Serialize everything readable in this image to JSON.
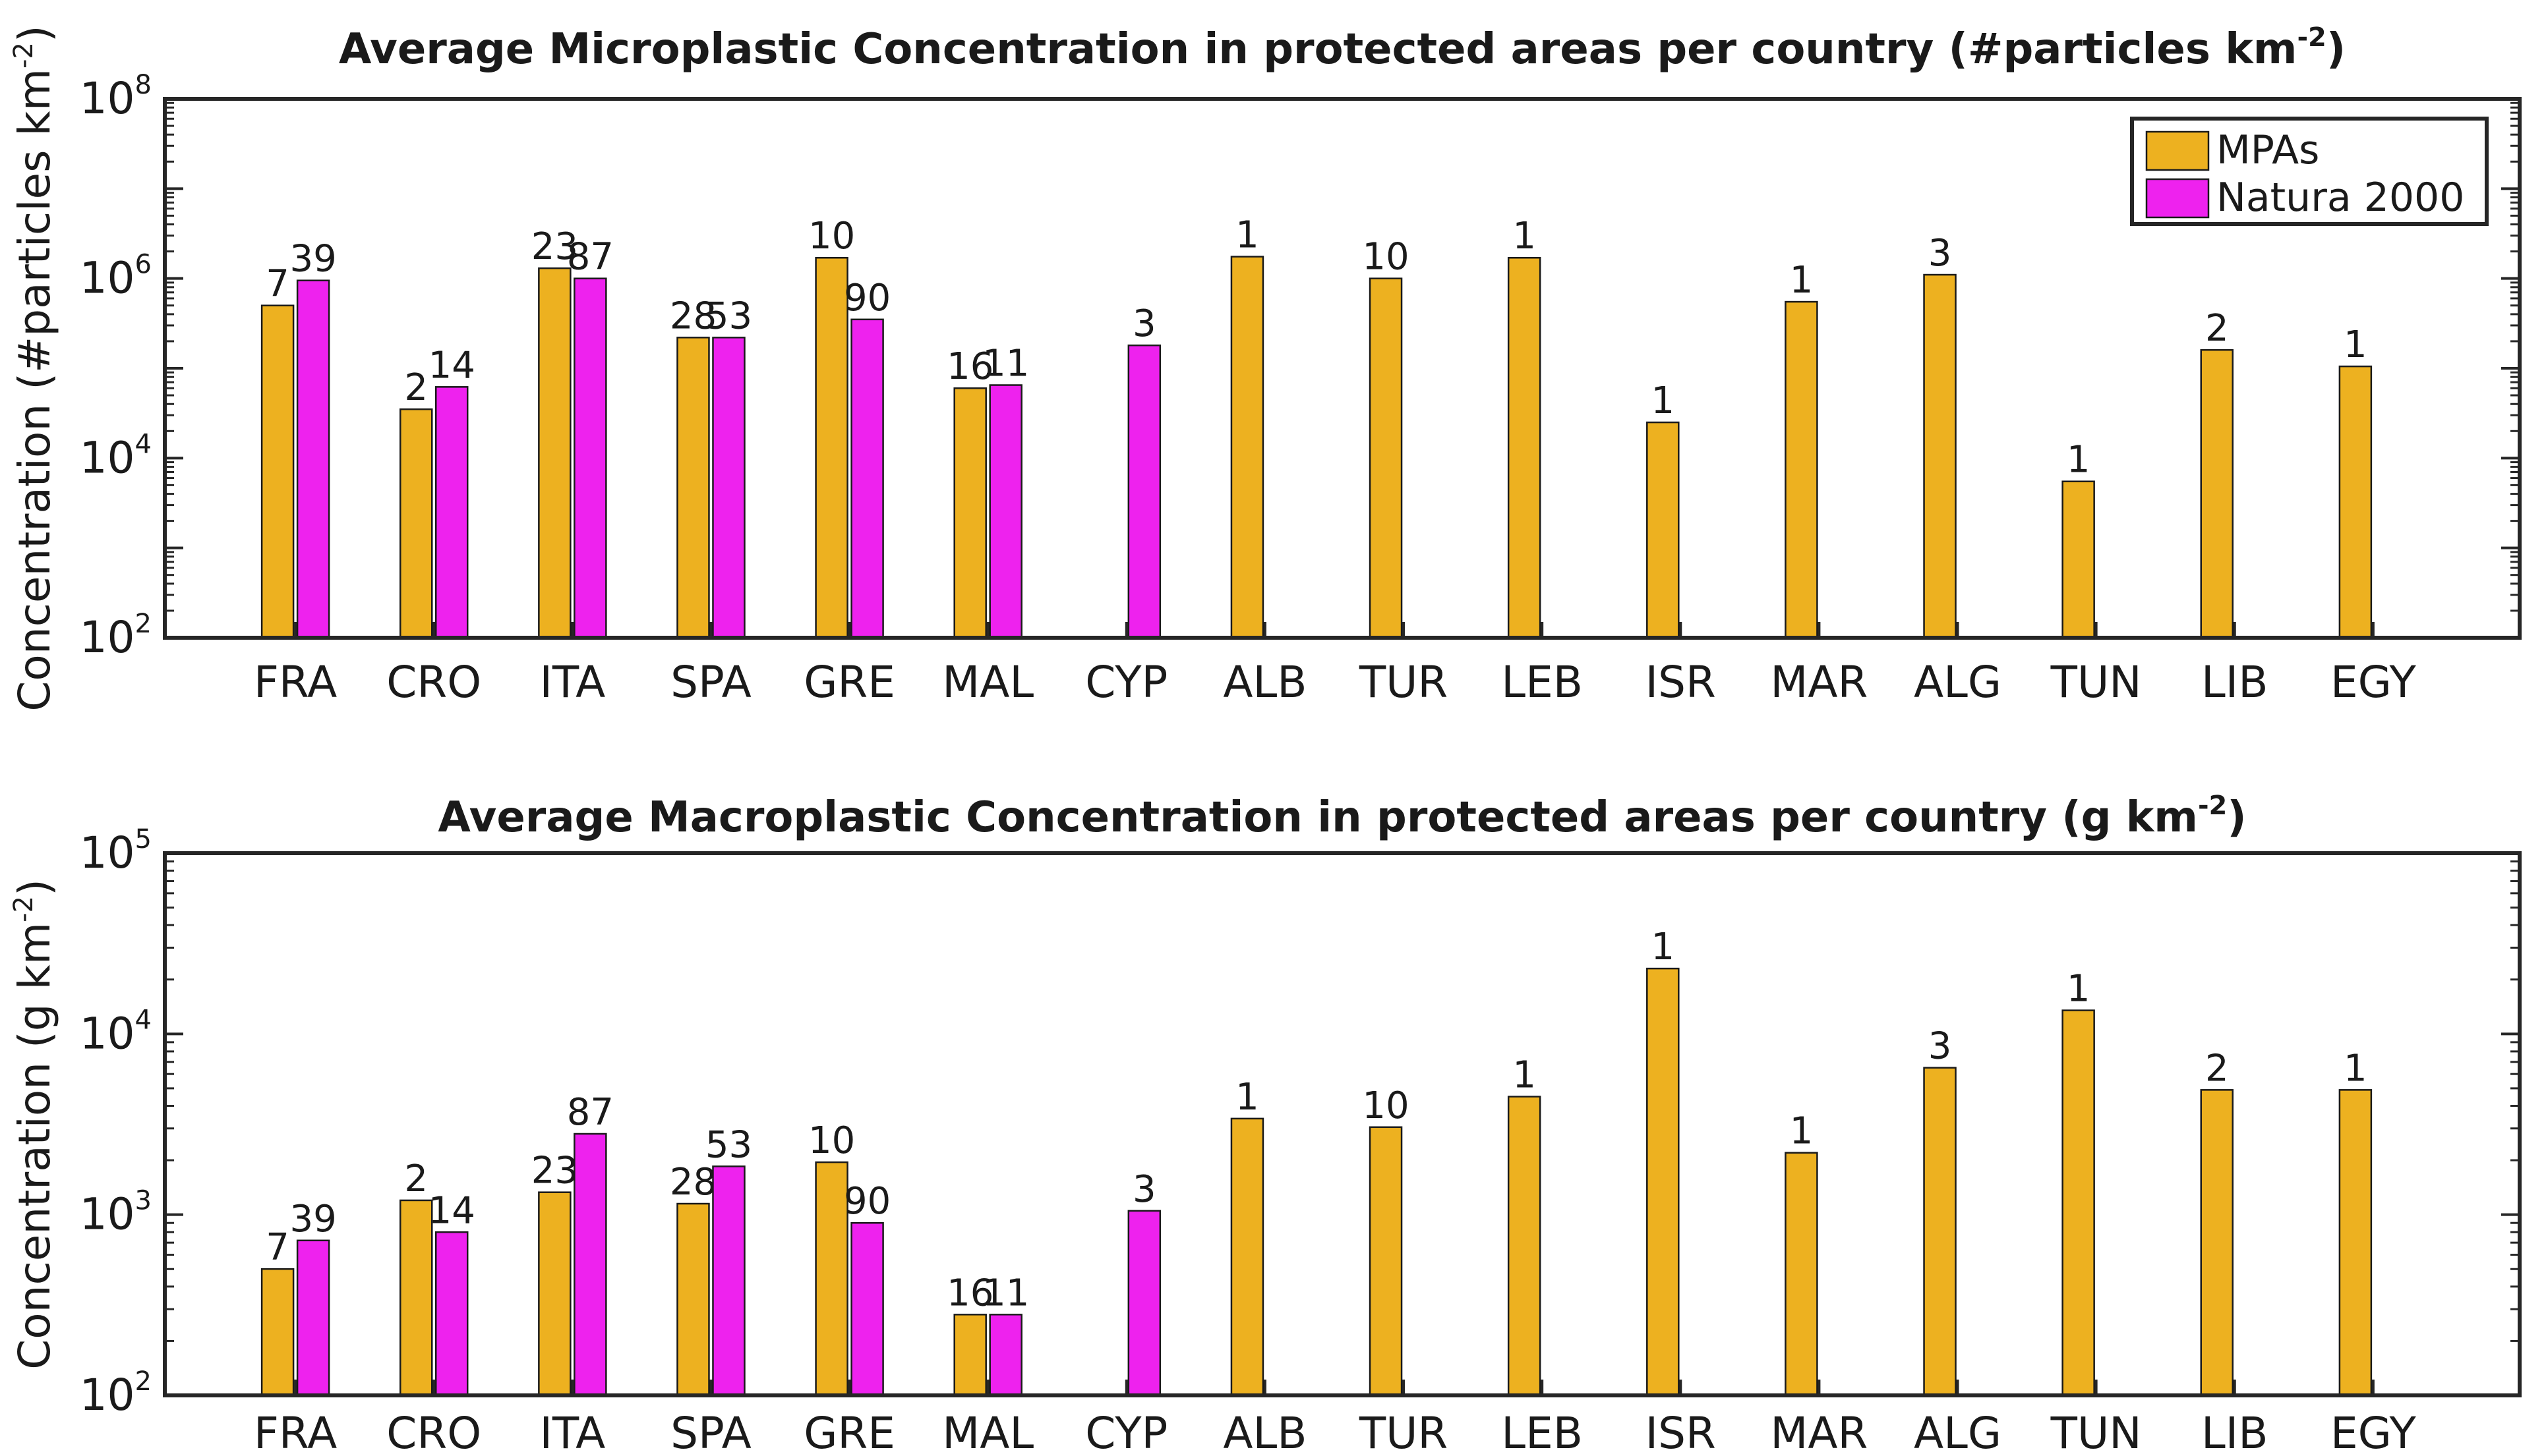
{
  "chart_data": [
    {
      "type": "bar",
      "title": "Average Microplastic Concentration in protected areas per country (#particles km",
      "title_exponent": "-2",
      "title_tail": ")",
      "ylabel": "Concentration (#particles km",
      "ylabel_exponent": "-2",
      "ylabel_tail": ")",
      "yscale": "log",
      "ylim": [
        100,
        100000000
      ],
      "ytick_base": "10",
      "yticks_exponents": [
        "2",
        "4",
        "6",
        "8"
      ],
      "categories": [
        "FRA",
        "CRO",
        "ITA",
        "SPA",
        "GRE",
        "MAL",
        "CYP",
        "ALB",
        "TUR",
        "LEB",
        "ISR",
        "MAR",
        "ALG",
        "TUN",
        "LIB",
        "EGY"
      ],
      "series": [
        {
          "name": "MPAs",
          "color": "#EDB120",
          "values": [
            500000,
            35000,
            1300000,
            220000,
            1700000,
            60000,
            null,
            1750000,
            1000000,
            1700000,
            25000,
            550000,
            1100000,
            5500,
            160000,
            105000
          ],
          "labels": [
            "7",
            "2",
            "23",
            "28",
            "10",
            "16",
            null,
            "1",
            "10",
            "1",
            "1",
            "1",
            "3",
            "1",
            "2",
            "1"
          ]
        },
        {
          "name": "Natura 2000",
          "color": "#EE22EE",
          "values": [
            950000,
            62000,
            1000000,
            220000,
            350000,
            65000,
            180000,
            null,
            null,
            null,
            null,
            null,
            null,
            null,
            null,
            null
          ],
          "labels": [
            "39",
            "14",
            "87",
            "53",
            "90",
            "11",
            "3",
            null,
            null,
            null,
            null,
            null,
            null,
            null,
            null,
            null
          ]
        }
      ],
      "legend": {
        "placement": "top-right",
        "entries": [
          "MPAs",
          "Natura 2000"
        ]
      }
    },
    {
      "type": "bar",
      "title": "Average Macroplastic Concentration in protected areas per country (g km",
      "title_exponent": "-2",
      "title_tail": ")",
      "ylabel": "Concentration (g km",
      "ylabel_exponent": "-2",
      "ylabel_tail": ")",
      "yscale": "log",
      "ylim": [
        100,
        100000
      ],
      "ytick_base": "10",
      "yticks_exponents": [
        "2",
        "3",
        "4",
        "5"
      ],
      "categories": [
        "FRA",
        "CRO",
        "ITA",
        "SPA",
        "GRE",
        "MAL",
        "CYP",
        "ALB",
        "TUR",
        "LEB",
        "ISR",
        "MAR",
        "ALG",
        "TUN",
        "LIB",
        "EGY"
      ],
      "series": [
        {
          "name": "MPAs",
          "color": "#EDB120",
          "values": [
            500,
            1200,
            1330,
            1150,
            1950,
            280,
            null,
            3400,
            3050,
            4500,
            23000,
            2200,
            6500,
            13500,
            4900,
            4900
          ],
          "labels": [
            "7",
            "2",
            "23",
            "28",
            "10",
            "16",
            null,
            "1",
            "10",
            "1",
            "1",
            "1",
            "3",
            "1",
            "2",
            "1"
          ]
        },
        {
          "name": "Natura 2000",
          "color": "#EE22EE",
          "values": [
            720,
            800,
            2800,
            1850,
            900,
            280,
            1050,
            null,
            null,
            null,
            null,
            null,
            null,
            null,
            null,
            null
          ],
          "labels": [
            "39",
            "14",
            "87",
            "53",
            "90",
            "11",
            "3",
            null,
            null,
            null,
            null,
            null,
            null,
            null,
            null,
            null
          ]
        }
      ]
    }
  ]
}
